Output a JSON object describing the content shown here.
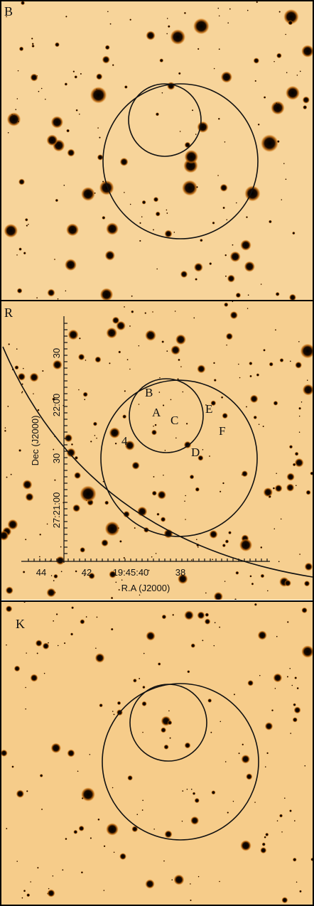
{
  "panels": [
    {
      "label": "B"
    },
    {
      "label": "R",
      "axes": {
        "x_label": "R.A (J2000)",
        "x_ticks": [
          "44",
          "42",
          "19:45:40",
          "38"
        ],
        "y_label": "Dec (J2000)",
        "y_ticks": [
          "30",
          "22:00",
          "30",
          "27:21:00"
        ]
      },
      "sources": [
        "B",
        "A",
        "C",
        "E",
        "F",
        "4",
        "D"
      ]
    },
    {
      "label": "K"
    }
  ]
}
